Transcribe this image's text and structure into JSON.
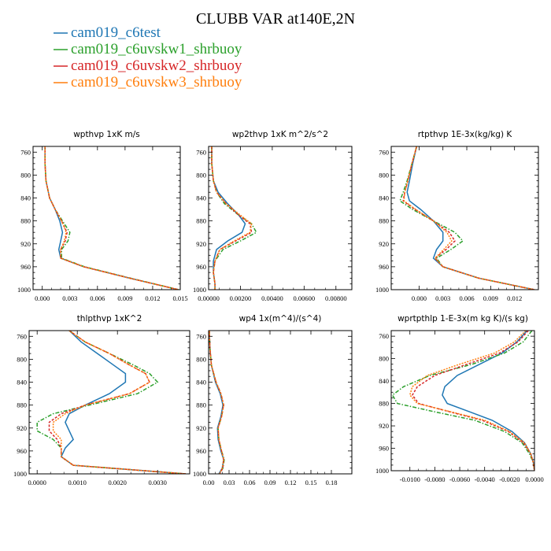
{
  "figure": {
    "title": "CLUBB VAR at140E,2N"
  },
  "legend": {
    "placement": "top-left",
    "entries": [
      {
        "name": "cam019_c6test",
        "color": "#1f77b4"
      },
      {
        "name": "cam019_c6uvskw1_shrbuoy",
        "color": "#2ca02c"
      },
      {
        "name": "cam019_c6uvskw2_shrbuoy",
        "color": "#d62728"
      },
      {
        "name": "cam019_c6uvskw3_shrbuoy",
        "color": "#ff7f0e"
      }
    ]
  },
  "chart_data": [
    {
      "type": "line",
      "title": "wpthvp  1xK m/s",
      "xlim": [
        -0.001,
        0.015
      ],
      "ylim": [
        750,
        1000
      ],
      "y_inverted": true,
      "xticks": [
        0.0,
        0.003,
        0.006,
        0.009,
        0.012,
        0.015
      ],
      "xtick_labels": [
        "0.000",
        "0.003",
        "0.006",
        "0.009",
        "0.012",
        "0.015"
      ],
      "yticks": [
        760,
        800,
        840,
        880,
        920,
        960,
        1000
      ],
      "y": [
        750,
        780,
        810,
        840,
        860,
        880,
        900,
        915,
        930,
        945,
        960,
        980,
        1000
      ],
      "series": [
        {
          "name": "cam019_c6test",
          "x": [
            0.0003,
            0.0003,
            0.0004,
            0.0008,
            0.0014,
            0.0019,
            0.0022,
            0.002,
            0.0018,
            0.002,
            0.0045,
            0.0095,
            0.0148
          ]
        },
        {
          "name": "cam019_c6uvskw1_shrbuoy",
          "x": [
            0.0003,
            0.0003,
            0.0004,
            0.0008,
            0.0014,
            0.0022,
            0.003,
            0.0028,
            0.0021,
            0.0021,
            0.0046,
            0.0096,
            0.0148
          ]
        },
        {
          "name": "cam019_c6uvskw2_shrbuoy",
          "x": [
            0.0003,
            0.0003,
            0.0004,
            0.0008,
            0.0014,
            0.0021,
            0.0027,
            0.0025,
            0.002,
            0.002,
            0.0045,
            0.0095,
            0.0148
          ]
        },
        {
          "name": "cam019_c6uvskw3_shrbuoy",
          "x": [
            0.0003,
            0.0003,
            0.0004,
            0.0008,
            0.0014,
            0.0021,
            0.0026,
            0.0024,
            0.002,
            0.002,
            0.0045,
            0.0095,
            0.0148
          ]
        }
      ]
    },
    {
      "type": "line",
      "title": "wp2thvp  1xK m^2/s^2",
      "xlim": [
        0.0,
        0.009
      ],
      "ylim": [
        750,
        1000
      ],
      "y_inverted": true,
      "xticks": [
        0.0,
        0.002,
        0.004,
        0.006,
        0.008
      ],
      "xtick_labels": [
        "0.00000",
        "0.00200",
        "0.00400",
        "0.00600",
        "0.00800"
      ],
      "yticks": [
        760,
        800,
        840,
        880,
        920,
        960,
        1000
      ],
      "y": [
        750,
        780,
        810,
        830,
        850,
        870,
        885,
        900,
        915,
        930,
        950,
        970,
        990,
        1000
      ],
      "series": [
        {
          "name": "cam019_c6test",
          "x": [
            0.0002,
            0.0002,
            0.0003,
            0.0006,
            0.0012,
            0.0019,
            0.0023,
            0.0021,
            0.0012,
            0.0005,
            0.0003,
            0.0003,
            0.0004,
            0.0004
          ]
        },
        {
          "name": "cam019_c6uvskw1_shrbuoy",
          "x": [
            0.0002,
            0.0002,
            0.0003,
            0.0005,
            0.001,
            0.0019,
            0.0027,
            0.003,
            0.002,
            0.0009,
            0.0004,
            0.0003,
            0.0004,
            0.0004
          ]
        },
        {
          "name": "cam019_c6uvskw2_shrbuoy",
          "x": [
            0.0002,
            0.0002,
            0.0003,
            0.0005,
            0.0011,
            0.0019,
            0.0026,
            0.0027,
            0.0017,
            0.0007,
            0.0004,
            0.0003,
            0.0004,
            0.0004
          ]
        },
        {
          "name": "cam019_c6uvskw3_shrbuoy",
          "x": [
            0.0002,
            0.0002,
            0.0003,
            0.0005,
            0.0011,
            0.002,
            0.0027,
            0.0026,
            0.0016,
            0.0007,
            0.0004,
            0.0003,
            0.0004,
            0.0004
          ]
        }
      ]
    },
    {
      "type": "line",
      "title": "rtpthvp  1E-3x(kg/kg) K",
      "xlim": [
        -0.0035,
        0.015
      ],
      "ylim": [
        750,
        1000
      ],
      "y_inverted": true,
      "xticks": [
        0.0,
        0.003,
        0.006,
        0.009,
        0.012
      ],
      "xtick_labels": [
        "0.000",
        "0.003",
        "0.006",
        "0.009",
        "0.012"
      ],
      "yticks": [
        760,
        800,
        840,
        880,
        920,
        960,
        1000
      ],
      "y": [
        750,
        780,
        810,
        830,
        845,
        860,
        880,
        900,
        915,
        930,
        945,
        960,
        980,
        1000
      ],
      "series": [
        {
          "name": "cam019_c6test",
          "x": [
            -0.0003,
            -0.0008,
            -0.0012,
            -0.0015,
            -0.0012,
            0.0002,
            0.0018,
            0.003,
            0.003,
            0.0022,
            0.0018,
            0.003,
            0.0075,
            0.0145
          ]
        },
        {
          "name": "cam019_c6uvskw1_shrbuoy",
          "x": [
            -0.0003,
            -0.0009,
            -0.0015,
            -0.002,
            -0.0024,
            -0.0008,
            0.0018,
            0.0045,
            0.0055,
            0.004,
            0.0022,
            0.003,
            0.0075,
            0.0145
          ]
        },
        {
          "name": "cam019_c6uvskw2_shrbuoy",
          "x": [
            -0.0003,
            -0.0009,
            -0.0014,
            -0.0018,
            -0.002,
            -0.0005,
            0.0018,
            0.0038,
            0.0045,
            0.0034,
            0.002,
            0.003,
            0.0075,
            0.0145
          ]
        },
        {
          "name": "cam019_c6uvskw3_shrbuoy",
          "x": [
            -0.0003,
            -0.0009,
            -0.0014,
            -0.0018,
            -0.0019,
            -0.0004,
            0.0018,
            0.0035,
            0.0041,
            0.0031,
            0.002,
            0.003,
            0.0075,
            0.0145
          ]
        }
      ]
    },
    {
      "type": "line",
      "title": "thlpthvp  1xK^2",
      "xlim": [
        -0.0002,
        0.0038
      ],
      "ylim": [
        750,
        1000
      ],
      "y_inverted": true,
      "xticks": [
        0.0,
        0.001,
        0.002,
        0.003
      ],
      "xtick_labels": [
        "0.0000",
        "0.0010",
        "0.0020",
        "0.0030"
      ],
      "yticks": [
        760,
        800,
        840,
        880,
        920,
        960,
        1000
      ],
      "y": [
        750,
        770,
        790,
        810,
        825,
        840,
        860,
        880,
        895,
        910,
        925,
        940,
        955,
        970,
        985,
        1000
      ],
      "series": [
        {
          "name": "cam019_c6test",
          "x": [
            0.0008,
            0.0011,
            0.0015,
            0.0019,
            0.0022,
            0.0022,
            0.0018,
            0.0012,
            0.0008,
            0.0007,
            0.0008,
            0.0009,
            0.0007,
            0.0006,
            0.0009,
            0.0037
          ]
        },
        {
          "name": "cam019_c6uvskw1_shrbuoy",
          "x": [
            0.0008,
            0.0012,
            0.0018,
            0.0024,
            0.0028,
            0.003,
            0.0025,
            0.0013,
            0.0004,
            0.0,
            0.0,
            0.0004,
            0.0006,
            0.0006,
            0.0009,
            0.0037
          ]
        },
        {
          "name": "cam019_c6uvskw2_shrbuoy",
          "x": [
            0.0008,
            0.0012,
            0.0018,
            0.0023,
            0.0027,
            0.0028,
            0.0023,
            0.0012,
            0.0006,
            0.0003,
            0.0003,
            0.0005,
            0.0006,
            0.0006,
            0.0009,
            0.0037
          ]
        },
        {
          "name": "cam019_c6uvskw3_shrbuoy",
          "x": [
            0.0008,
            0.0012,
            0.0018,
            0.0023,
            0.0027,
            0.0028,
            0.0023,
            0.0012,
            0.0007,
            0.0004,
            0.0004,
            0.0006,
            0.0006,
            0.0006,
            0.0009,
            0.0037
          ]
        }
      ]
    },
    {
      "type": "line",
      "title": "wp4  1x(m^4)/(s^4)",
      "xlim": [
        0.0,
        0.21
      ],
      "ylim": [
        750,
        1000
      ],
      "y_inverted": true,
      "xticks": [
        0.0,
        0.03,
        0.06,
        0.09,
        0.12,
        0.15,
        0.18
      ],
      "xtick_labels": [
        "0.00",
        "0.03",
        "0.06",
        "0.09",
        "0.12",
        "0.15",
        "0.18"
      ],
      "yticks": [
        760,
        800,
        840,
        880,
        920,
        960,
        1000
      ],
      "y": [
        750,
        780,
        810,
        840,
        860,
        880,
        900,
        920,
        940,
        960,
        975,
        990,
        1000
      ],
      "series": [
        {
          "name": "cam019_c6test",
          "x": [
            0.001,
            0.002,
            0.004,
            0.01,
            0.017,
            0.021,
            0.018,
            0.013,
            0.014,
            0.018,
            0.022,
            0.02,
            0.015
          ]
        },
        {
          "name": "cam019_c6uvskw1_shrbuoy",
          "x": [
            0.001,
            0.002,
            0.004,
            0.011,
            0.018,
            0.022,
            0.019,
            0.014,
            0.015,
            0.019,
            0.023,
            0.021,
            0.016
          ]
        },
        {
          "name": "cam019_c6uvskw2_shrbuoy",
          "x": [
            0.001,
            0.002,
            0.004,
            0.011,
            0.018,
            0.022,
            0.019,
            0.014,
            0.015,
            0.019,
            0.022,
            0.021,
            0.016
          ]
        },
        {
          "name": "cam019_c6uvskw3_shrbuoy",
          "x": [
            0.001,
            0.002,
            0.004,
            0.011,
            0.018,
            0.022,
            0.019,
            0.014,
            0.015,
            0.019,
            0.022,
            0.02,
            0.016
          ]
        }
      ]
    },
    {
      "type": "line",
      "title": "wprtpthlp  1-E-3x(m kg K)/(s kg)",
      "xlim": [
        -0.0115,
        0.0
      ],
      "ylim": [
        750,
        1000
      ],
      "y_inverted": true,
      "xticks": [
        -0.01,
        -0.008,
        -0.006,
        -0.004,
        -0.002,
        0.0
      ],
      "xtick_labels": [
        "-0.0100",
        "-0.0080",
        "-0.0060",
        "-0.0040",
        "-0.0020",
        "0.0000"
      ],
      "yticks": [
        760,
        800,
        840,
        880,
        920,
        960,
        1000
      ],
      "y": [
        750,
        770,
        790,
        810,
        830,
        850,
        865,
        880,
        895,
        910,
        930,
        950,
        970,
        985,
        1000
      ],
      "series": [
        {
          "name": "cam019_c6test",
          "x": [
            -0.0006,
            -0.0014,
            -0.0026,
            -0.0044,
            -0.0062,
            -0.0072,
            -0.0074,
            -0.007,
            -0.0052,
            -0.0034,
            -0.0018,
            -0.0008,
            -0.0003,
            -0.0001,
            0.0
          ]
        },
        {
          "name": "cam019_c6uvskw1_shrbuoy",
          "x": [
            -0.0002,
            -0.0009,
            -0.0024,
            -0.005,
            -0.0084,
            -0.0105,
            -0.0114,
            -0.011,
            -0.008,
            -0.0048,
            -0.0024,
            -0.001,
            -0.0004,
            -0.0001,
            0.0
          ]
        },
        {
          "name": "cam019_c6uvskw2_shrbuoy",
          "x": [
            -0.0005,
            -0.0013,
            -0.0028,
            -0.0054,
            -0.008,
            -0.0094,
            -0.0098,
            -0.0093,
            -0.0068,
            -0.0042,
            -0.0021,
            -0.0009,
            -0.0003,
            -0.0001,
            0.0
          ]
        },
        {
          "name": "cam019_c6uvskw3_shrbuoy",
          "x": [
            -0.0007,
            -0.0016,
            -0.0032,
            -0.006,
            -0.0086,
            -0.0098,
            -0.01,
            -0.0094,
            -0.0067,
            -0.004,
            -0.002,
            -0.0008,
            -0.0003,
            -0.0001,
            0.0
          ]
        }
      ]
    }
  ]
}
